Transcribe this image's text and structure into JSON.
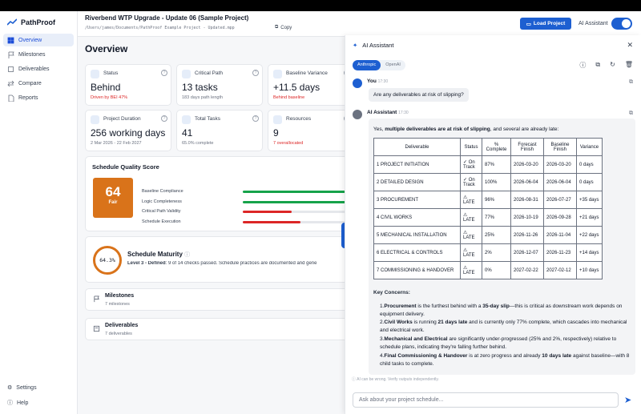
{
  "app": {
    "name": "PathProof"
  },
  "sidebar": {
    "items": [
      {
        "label": "Overview",
        "icon": "grid-icon",
        "active": true
      },
      {
        "label": "Milestones",
        "icon": "flag-icon"
      },
      {
        "label": "Deliverables",
        "icon": "box-icon"
      },
      {
        "label": "Compare",
        "icon": "compare-icon"
      },
      {
        "label": "Reports",
        "icon": "document-icon"
      }
    ],
    "bottom": [
      {
        "label": "Settings",
        "icon": "gear-icon"
      },
      {
        "label": "Help",
        "icon": "help-icon"
      }
    ]
  },
  "header": {
    "project_title": "Riverbend WTP Upgrade - Update 06 (Sample Project)",
    "file_path": "/Users/james/Documents/PathProof Example Project - Updated.mpp",
    "copy_label": "Copy",
    "load_button": "Load Project",
    "ai_assistant_label": "AI Assistant",
    "ai_assistant_on": true
  },
  "overview": {
    "title": "Overview",
    "cards": [
      {
        "label": "Status",
        "value": "Behind",
        "sub": "Driven by BEI 47%",
        "sub_red": true
      },
      {
        "label": "Critical Path",
        "value": "13 tasks",
        "sub": "183 days path length"
      },
      {
        "label": "Baseline Variance",
        "value": "+11.5 days",
        "sub": "Behind baseline",
        "sub_red": true
      },
      {
        "label": "Project Duration",
        "value": "256 working days",
        "sub": "2 Mar 2026 - 22 Feb 2027"
      },
      {
        "label": "Total Tasks",
        "value": "41",
        "sub": "65.0% complete"
      },
      {
        "label": "Resources",
        "value": "9",
        "sub": "7 overallocated",
        "sub_red": true
      }
    ],
    "schedule_quality": {
      "title": "Schedule Quality Score",
      "score": "64",
      "grade": "Fair",
      "metrics": [
        {
          "label": "Baseline Compliance",
          "fraction": 0.95,
          "color": "#16a34a"
        },
        {
          "label": "Logic Completeness",
          "fraction": 0.95,
          "color": "#16a34a"
        },
        {
          "label": "Critical Path Validity",
          "fraction": 0.45,
          "color": "#dc2626"
        },
        {
          "label": "Schedule Execution",
          "fraction": 0.53,
          "color": "#dc2626"
        }
      ]
    },
    "maturity": {
      "score": "64.3%",
      "title": "Schedule Maturity",
      "level_bold": "Level 3 - Defined",
      "detail": ": 9 of 14 checks passed. Schedule practices are documented and gene"
    },
    "milestones": {
      "title": "Milestones",
      "count": "7 milestones"
    },
    "deliverables": {
      "title": "Deliverables",
      "count": "7 deliverables"
    }
  },
  "assistant": {
    "title": "AI Assistant",
    "providers": [
      "Anthropic",
      "OpenAI"
    ],
    "active_provider": "Anthropic",
    "user_name": "You",
    "user_time": "17:30",
    "user_message": "Are any deliverables at risk of slipping?",
    "ai_name": "AI Assistant",
    "ai_time": "17:30",
    "intro_prefix": "Yes, ",
    "intro_bold": "multiple deliverables are at risk of slipping",
    "intro_suffix": ", and several are already late:",
    "table": {
      "headers": [
        "Deliverable",
        "Status",
        "% Complete",
        "Forecast Finish",
        "Baseline Finish",
        "Variance"
      ],
      "rows": [
        [
          "1 PROJECT INITIATION",
          "✓ On Track",
          "87%",
          "2026-03-20",
          "2026-03-20",
          "0 days"
        ],
        [
          "2 DETAILED DESIGN",
          "✓ On Track",
          "100%",
          "2026-06-04",
          "2026-06-04",
          "0 days"
        ],
        [
          "3 PROCUREMENT",
          "⚠ LATE",
          "96%",
          "2026-08-31",
          "2026-07-27",
          "+35 days"
        ],
        [
          "4 CIVIL WORKS",
          "⚠ LATE",
          "77%",
          "2026-10-19",
          "2026-09-28",
          "+21 days"
        ],
        [
          "5 MECHANICAL INSTALLATION",
          "⚠ LATE",
          "25%",
          "2026-11-26",
          "2026-11-04",
          "+22 days"
        ],
        [
          "6 ELECTRICAL & CONTROLS",
          "⚠ LATE",
          "2%",
          "2026-12-07",
          "2026-11-23",
          "+14 days"
        ],
        [
          "7 COMMISSIONING & HANDOVER",
          "⚠ LATE",
          "0%",
          "2027-02-22",
          "2027-02-12",
          "+10 days"
        ]
      ]
    },
    "key_concerns_title": "Key Concerns:",
    "concerns": [
      {
        "n": "1.",
        "bold": "Procurement",
        "text1": " is the furthest behind with a ",
        "bold2": "35-day slip",
        "text2": "—this is critical as downstream work depends on equipment delivery."
      },
      {
        "n": "2.",
        "bold": "Civil Works",
        "text1": " is running ",
        "bold2": "21 days late",
        "text2": " and is currently only 77% complete, which cascades into mechanical and electrical work."
      },
      {
        "n": "3.",
        "bold": "Mechanical and Electrical",
        "text1": " are significantly under-progressed (25% and 2%, respectively) relative to schedule plans, indicating they're falling further behind.",
        "bold2": "",
        "text2": ""
      },
      {
        "n": "4.",
        "bold": "Final Commissioning & Handover",
        "text1": " is at zero progress and already ",
        "bold2": "10 days late",
        "text2": " against baseline—with 8 child tasks to complete."
      }
    ],
    "disclaimer": "AI can be wrong. Verify outputs independently.",
    "input_placeholder": "Ask about your project schedule..."
  }
}
